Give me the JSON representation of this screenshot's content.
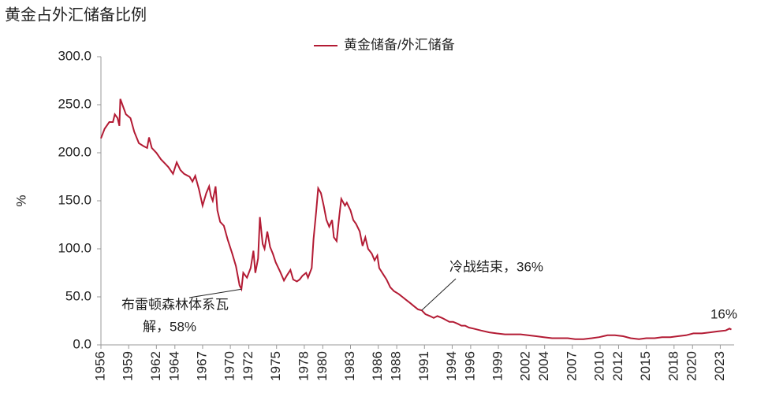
{
  "chart_data": {
    "type": "line",
    "title": "黄金占外汇储备比例",
    "y_label": "%",
    "series": [
      {
        "name": "黄金储备/外汇储备",
        "color": "#b31b34",
        "x": [
          1956.0,
          1956.4,
          1956.9,
          1957.3,
          1957.5,
          1957.8,
          1958.0,
          1958.1,
          1958.4,
          1958.7,
          1959.2,
          1959.6,
          1960.1,
          1960.6,
          1961.0,
          1961.2,
          1961.5,
          1962.0,
          1962.5,
          1963.0,
          1963.3,
          1963.8,
          1964.2,
          1964.6,
          1965.0,
          1965.6,
          1965.9,
          1966.2,
          1966.6,
          1967.0,
          1967.4,
          1967.7,
          1967.9,
          1968.1,
          1968.4,
          1968.6,
          1968.9,
          1969.3,
          1969.7,
          1970.2,
          1970.6,
          1971.0,
          1971.2,
          1971.4,
          1971.8,
          1972.2,
          1972.5,
          1972.7,
          1973.0,
          1973.2,
          1973.5,
          1973.7,
          1974.0,
          1974.3,
          1974.6,
          1974.9,
          1975.4,
          1975.8,
          1976.1,
          1976.5,
          1976.8,
          1977.2,
          1977.5,
          1977.8,
          1978.2,
          1978.4,
          1978.8,
          1979.0,
          1979.3,
          1979.5,
          1979.8,
          1980.1,
          1980.4,
          1980.7,
          1981.0,
          1981.2,
          1981.5,
          1981.8,
          1982.0,
          1982.4,
          1982.6,
          1983.0,
          1983.3,
          1983.6,
          1984.0,
          1984.3,
          1984.6,
          1984.9,
          1985.3,
          1985.6,
          1985.9,
          1986.1,
          1986.5,
          1986.9,
          1987.3,
          1987.7,
          1988.2,
          1988.6,
          1989.0,
          1989.4,
          1989.9,
          1990.3,
          1990.7,
          1991.1,
          1991.6,
          1992.0,
          1992.4,
          1992.9,
          1993.3,
          1993.7,
          1994.1,
          1994.6,
          1995.0,
          1995.4,
          1995.8,
          1996.3,
          1997.1,
          1998.0,
          1998.8,
          1999.7,
          2000.5,
          2001.4,
          2002.2,
          2003.1,
          2003.9,
          2004.8,
          2005.6,
          2006.5,
          2007.3,
          2008.2,
          2009.1,
          2009.9,
          2010.8,
          2011.6,
          2012.5,
          2013.3,
          2014.2,
          2015.0,
          2015.9,
          2016.7,
          2017.6,
          2018.4,
          2019.3,
          2020.1,
          2021.0,
          2021.9,
          2022.7,
          2023.6,
          2024.0,
          2024.2
        ],
        "values": [
          215,
          225,
          232,
          232,
          240,
          236,
          228,
          256,
          248,
          240,
          236,
          222,
          210,
          207,
          205,
          216,
          205,
          200,
          193,
          188,
          185,
          178,
          190,
          182,
          178,
          175,
          170,
          176,
          162,
          145,
          158,
          165,
          155,
          150,
          165,
          140,
          128,
          124,
          110,
          95,
          82,
          62,
          58,
          75,
          70,
          80,
          98,
          75,
          90,
          133,
          105,
          100,
          118,
          102,
          95,
          86,
          76,
          67,
          72,
          78,
          68,
          66,
          68,
          72,
          75,
          70,
          80,
          110,
          140,
          163,
          158,
          145,
          130,
          123,
          130,
          112,
          108,
          135,
          152,
          145,
          148,
          140,
          130,
          126,
          118,
          103,
          112,
          100,
          95,
          88,
          93,
          80,
          74,
          68,
          60,
          56,
          53,
          50,
          47,
          44,
          40,
          37,
          36,
          32,
          30,
          28,
          30,
          28,
          26,
          24,
          24,
          22,
          20,
          20,
          18,
          17,
          15,
          13,
          12,
          11,
          11,
          11,
          10,
          9,
          8,
          7,
          7,
          7,
          6,
          6,
          7,
          8,
          10,
          10,
          9,
          7,
          6,
          7,
          7,
          8,
          8,
          9,
          10,
          12,
          12,
          13,
          14,
          15,
          17,
          16
        ]
      }
    ],
    "xlim": [
      1956,
      2024.5
    ],
    "xticks": [
      1956,
      1959,
      1962,
      1964,
      1967,
      1970,
      1972,
      1975,
      1978,
      1980,
      1983,
      1986,
      1988,
      1991,
      1994,
      1996,
      1999,
      2002,
      2004,
      2007,
      2010,
      2012,
      2015,
      2018,
      2020,
      2023
    ],
    "ylim": [
      0,
      300
    ],
    "yticks": [
      {
        "value": 0,
        "label": "0.0"
      },
      {
        "value": 50,
        "label": "50.0"
      },
      {
        "value": 100,
        "label": "100.0"
      },
      {
        "value": 150,
        "label": "150.0"
      },
      {
        "value": 200,
        "label": "200.0"
      },
      {
        "value": 250,
        "label": "250.0"
      },
      {
        "value": 300,
        "label": "300.0"
      }
    ],
    "annotations": [
      {
        "lines": [
          "布雷顿森林体系瓦",
          "解，58%"
        ]
      },
      {
        "lines": [
          "冷战结束，36%"
        ]
      },
      {
        "lines": [
          "16%"
        ]
      }
    ]
  }
}
